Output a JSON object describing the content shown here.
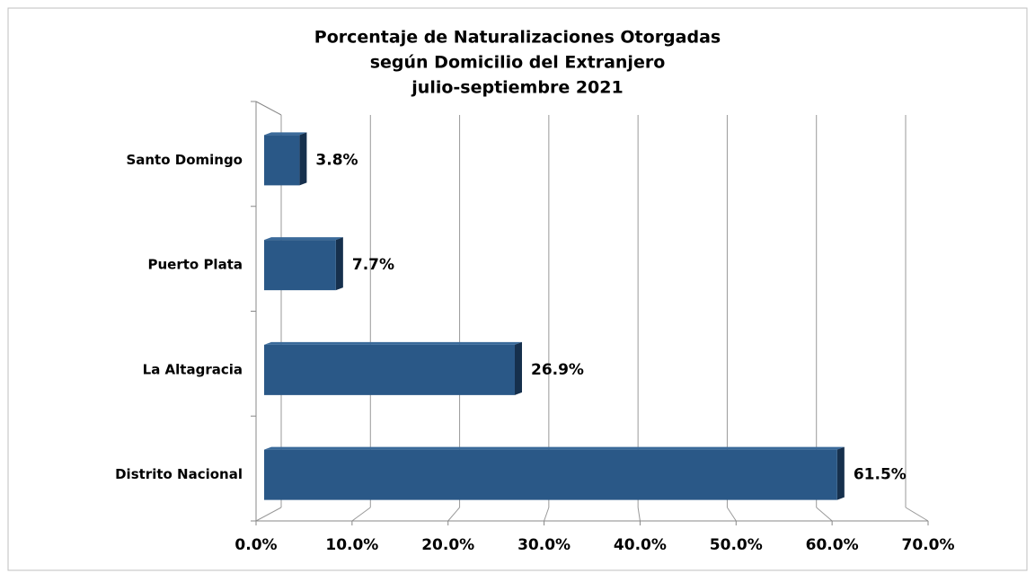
{
  "chart_data": {
    "type": "bar",
    "orientation": "horizontal",
    "title": [
      "Porcentaje de Naturalizaciones Otorgadas",
      "según Domicilio del Extranjero",
      "julio-septiembre 2021"
    ],
    "categories": [
      "Santo Domingo",
      "Puerto Plata",
      "La Altagracia",
      "Distrito Nacional"
    ],
    "values": [
      3.8,
      7.7,
      26.9,
      61.5
    ],
    "value_labels": [
      "3.8%",
      "7.7%",
      "26.9%",
      "61.5%"
    ],
    "color": "#2a5887",
    "xlim": [
      0,
      70
    ],
    "xticks": [
      {
        "value": 0,
        "label": "0.0%"
      },
      {
        "value": 10,
        "label": "10.0%"
      },
      {
        "value": 20,
        "label": "20.0%"
      },
      {
        "value": 30,
        "label": "30.0%"
      },
      {
        "value": 40,
        "label": "40.0%"
      },
      {
        "value": 50,
        "label": "50.0%"
      },
      {
        "value": 60,
        "label": "60.0%"
      },
      {
        "value": 70,
        "label": "70.0%"
      }
    ],
    "grid": true
  }
}
